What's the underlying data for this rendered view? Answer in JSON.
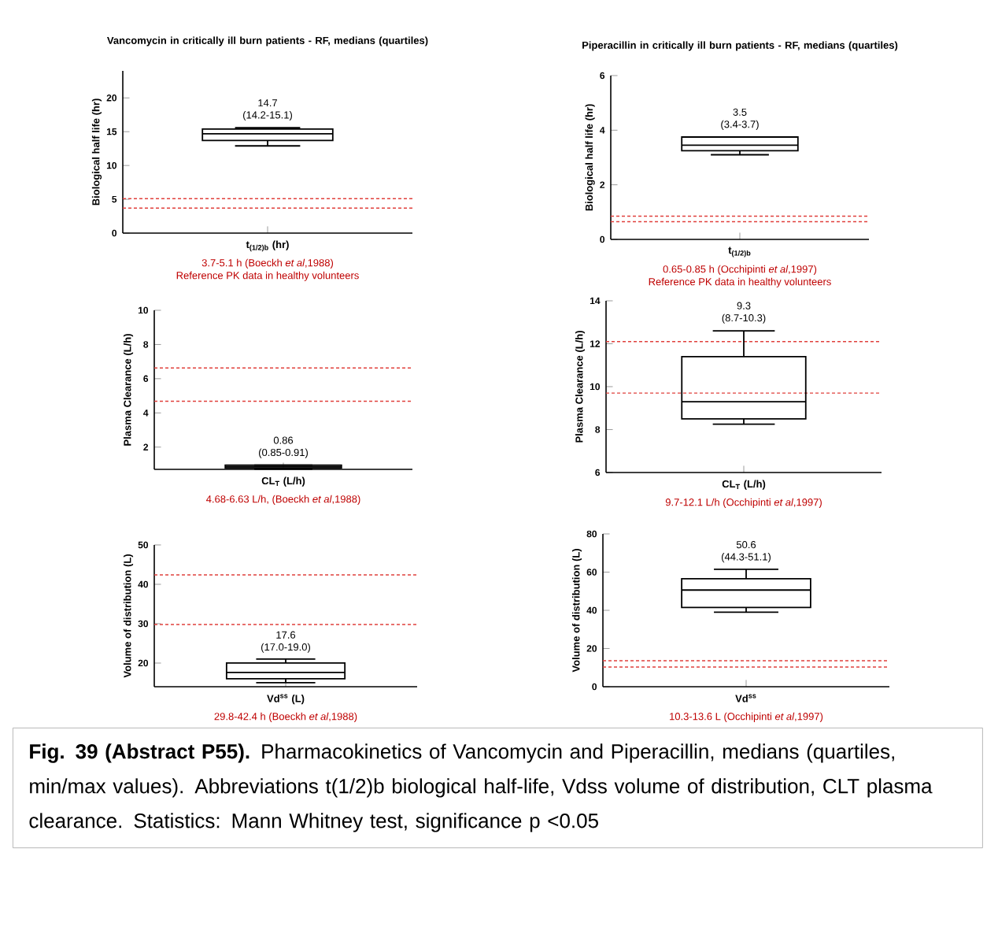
{
  "chart_data": [
    {
      "type": "box",
      "title": "Vancomycin in critically ill burn patients  - RF, medians (quartiles)",
      "ylabel": "Biological half life (hr)",
      "xlabel": "t$_{(1/2)b}$ (hr)",
      "categories": [
        null
      ],
      "tick_labels": "y",
      "ylim": [
        0,
        24
      ],
      "yticks": [
        0,
        5,
        10,
        15,
        20
      ],
      "boxes": [
        {
          "low": 12.9,
          "q1": 13.7,
          "median": 14.7,
          "q3": 15.4,
          "high": 15.6
        }
      ],
      "ref_lines": [
        {
          "axis": "y",
          "value": 3.7,
          "color": "#e0403c",
          "line_style": "dashed"
        },
        {
          "axis": "y",
          "value": 5.1,
          "color": "#e0403c",
          "line_style": "dashed"
        }
      ],
      "annotations": [
        "14.7",
        "(14.2-15.1)",
        "3.7-5.1 h (Boeckh *et al*,1988)",
        "Reference PK data in healthy volunteers"
      ]
    },
    {
      "type": "box",
      "title": "Piperacillin in critically ill burn patients  - RF, medians (quartiles)",
      "ylabel": "Biological half life (hr)",
      "xlabel": "t$_{(1/2)b}$",
      "categories": [
        null
      ],
      "tick_labels": "y",
      "ylim": [
        0,
        6
      ],
      "yticks": [
        0,
        2,
        4,
        6
      ],
      "boxes": [
        {
          "low": 3.1,
          "q1": 3.25,
          "median": 3.45,
          "q3": 3.75,
          "high": 3.75
        }
      ],
      "ref_lines": [
        {
          "axis": "y",
          "value": 0.65,
          "color": "#e0403c",
          "line_style": "dashed"
        },
        {
          "axis": "y",
          "value": 0.85,
          "color": "#e0403c",
          "line_style": "dashed"
        }
      ],
      "annotations": [
        "3.5",
        "(3.4-3.7)",
        "0.65-0.85 h (Occhipinti *et al*,1997)",
        "Reference PK data in healthy volunteers"
      ]
    },
    {
      "type": "box",
      "ylabel": "Plasma Clearance (L/h)",
      "xlabel": "CL$_{T}$ (L/h)",
      "categories": [
        null
      ],
      "tick_labels": "y",
      "ylim": [
        0.7,
        10
      ],
      "yticks": [
        2,
        4,
        6,
        8,
        10
      ],
      "boxes": [
        {
          "low": 0.72,
          "q1": 0.78,
          "median": 0.86,
          "q3": 0.95,
          "high": 0.95
        }
      ],
      "ref_lines": [
        {
          "axis": "y",
          "value": 4.68,
          "color": "#e0403c",
          "line_style": "dashed"
        },
        {
          "axis": "y",
          "value": 6.63,
          "color": "#e0403c",
          "line_style": "dashed"
        }
      ],
      "annotations": [
        "0.86",
        "(0.85-0.91)",
        "4.68-6.63 L/h, (Boeckh *et al*,1988)"
      ]
    },
    {
      "type": "box",
      "ylabel": "Plasma Clearance (L/h)",
      "xlabel": "CL$_{T}$ (L/h)",
      "categories": [
        null
      ],
      "tick_labels": "y",
      "ylim": [
        6,
        14
      ],
      "yticks": [
        6,
        8,
        10,
        12,
        14
      ],
      "boxes": [
        {
          "low": 8.25,
          "q1": 8.5,
          "median": 9.3,
          "q3": 11.4,
          "high": 12.6
        }
      ],
      "ref_lines": [
        {
          "axis": "y",
          "value": 9.7,
          "color": "#e0403c",
          "line_style": "dashed"
        },
        {
          "axis": "y",
          "value": 12.1,
          "color": "#e0403c",
          "line_style": "dashed"
        }
      ],
      "annotations": [
        "9.3",
        "(8.7-10.3)",
        "9.7-12.1 L/h (Occhipinti *et al*,1997)"
      ]
    },
    {
      "type": "box",
      "ylabel": "Volume of distribution (L)",
      "xlabel": "Vd$^{ss}$ (L)",
      "categories": [
        null
      ],
      "tick_labels": "y",
      "ylim": [
        14,
        50
      ],
      "yticks": [
        20,
        30,
        40,
        50
      ],
      "boxes": [
        {
          "low": 15,
          "q1": 16,
          "median": 17.6,
          "q3": 20,
          "high": 21
        }
      ],
      "ref_lines": [
        {
          "axis": "y",
          "value": 29.8,
          "color": "#e0403c",
          "line_style": "dashed"
        },
        {
          "axis": "y",
          "value": 42.4,
          "color": "#e0403c",
          "line_style": "dashed"
        }
      ],
      "annotations": [
        "17.6",
        "(17.0-19.0)",
        "29.8-42.4 h (Boeckh *et al*,1988)"
      ]
    },
    {
      "type": "box",
      "ylabel": "Volume of distribution (L)",
      "xlabel": "Vd$^{ss}$",
      "categories": [
        null
      ],
      "tick_labels": "y",
      "ylim": [
        0,
        80
      ],
      "yticks": [
        0,
        20,
        40,
        60,
        80
      ],
      "boxes": [
        {
          "low": 39,
          "q1": 41.5,
          "median": 50.6,
          "q3": 56.5,
          "high": 61.5
        }
      ],
      "ref_lines": [
        {
          "axis": "y",
          "value": 10.3,
          "color": "#e0403c",
          "line_style": "dashed"
        },
        {
          "axis": "y",
          "value": 13.6,
          "color": "#e0403c",
          "line_style": "dashed"
        }
      ],
      "annotations": [
        "50.6",
        "(44.3-51.1)",
        "10.3-13.6 L (Occhipinti *et al*,1997)"
      ]
    },
    {
      "type": "other",
      "annotations": [
        "**Fig. 39 (Abstract P55).** Pharmacokinetics of Vancomycin and Piperacillin, medians (quartiles, min/max values). Abbreviations t(1/2)b biological half-life, Vdss volume of distribution, CLT plasma clearance. Statistics: Mann Whitney test, significance p <0.05"
      ]
    }
  ]
}
